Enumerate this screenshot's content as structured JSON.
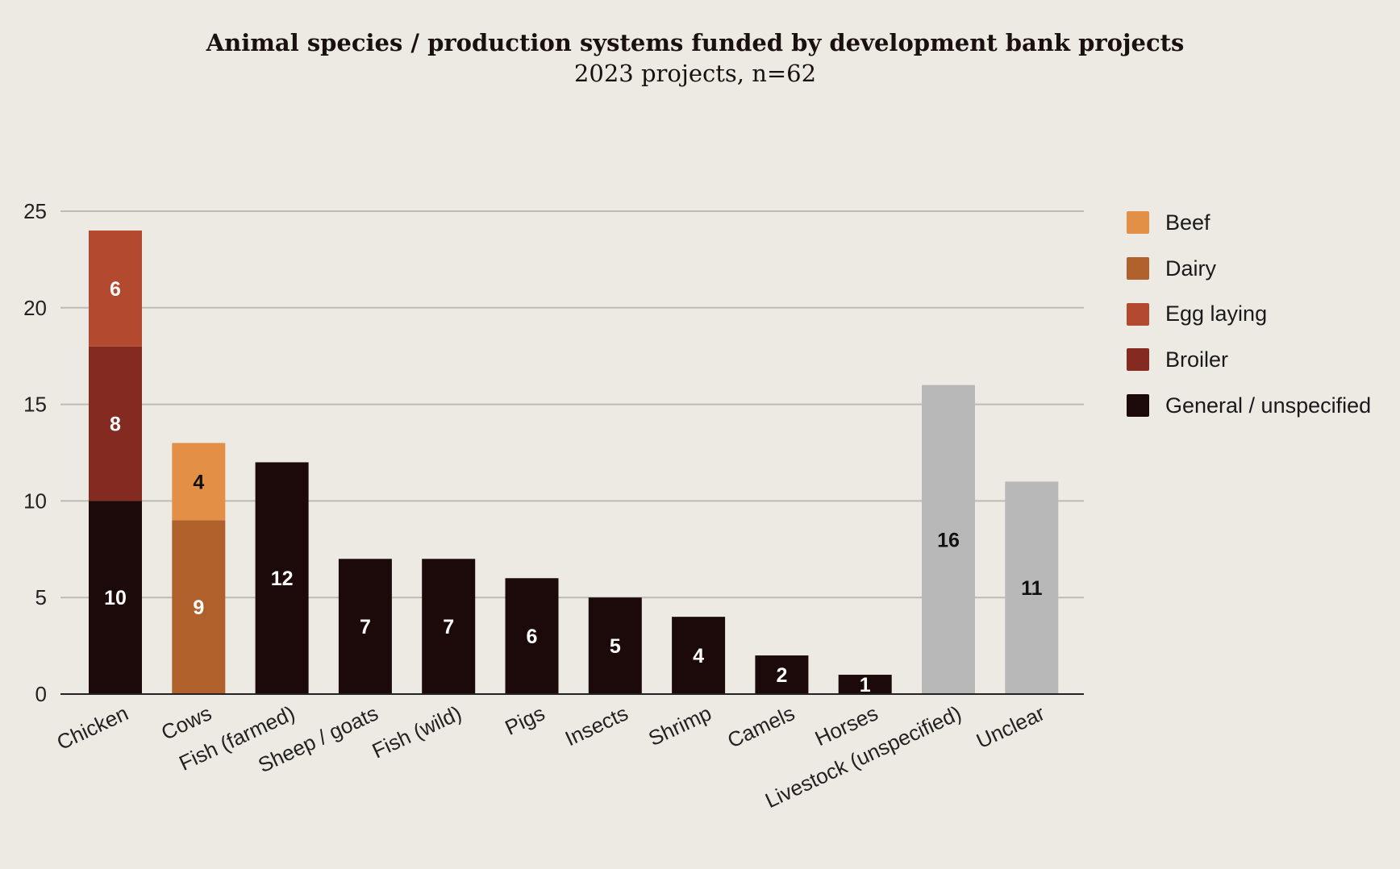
{
  "chart_data": {
    "type": "bar",
    "stacked": true,
    "title": "Animal species / production systems funded by development bank projects",
    "subtitle": "2023 projects, n=62",
    "xlabel": "",
    "ylabel": "",
    "ylim": [
      0,
      25
    ],
    "yticks": [
      0,
      5,
      10,
      15,
      20,
      25
    ],
    "grid": true,
    "legend_position": "right",
    "categories": [
      "Chicken",
      "Cows",
      "Fish (farmed)",
      "Sheep / goats",
      "Fish (wild)",
      "Pigs",
      "Insects",
      "Shrimp",
      "Camels",
      "Horses",
      "Livestock (unspecified)",
      "Unclear"
    ],
    "series": [
      {
        "name": "General / unspecified",
        "color": "#1C0A0A",
        "values": [
          10,
          0,
          12,
          7,
          7,
          6,
          5,
          4,
          2,
          1,
          0,
          0
        ]
      },
      {
        "name": "Dairy",
        "color": "#B0602A",
        "values": [
          0,
          9,
          0,
          0,
          0,
          0,
          0,
          0,
          0,
          0,
          0,
          0
        ]
      },
      {
        "name": "Beef",
        "color": "#E38F45",
        "values": [
          0,
          4,
          0,
          0,
          0,
          0,
          0,
          0,
          0,
          0,
          0,
          0
        ]
      },
      {
        "name": "Broiler",
        "color": "#852A20",
        "values": [
          8,
          0,
          0,
          0,
          0,
          0,
          0,
          0,
          0,
          0,
          0,
          0
        ]
      },
      {
        "name": "Egg laying",
        "color": "#B34A30",
        "values": [
          6,
          0,
          0,
          0,
          0,
          0,
          0,
          0,
          0,
          0,
          0,
          0
        ]
      },
      {
        "name": "",
        "color": "#B8B8B8",
        "values": [
          0,
          0,
          0,
          0,
          0,
          0,
          0,
          0,
          0,
          0,
          16,
          11
        ]
      }
    ],
    "legend_order": [
      "Beef",
      "Dairy",
      "Egg laying",
      "Broiler",
      "General / unspecified"
    ]
  },
  "colors": {
    "background": "#EDEAE4",
    "grid": "#BDBBB6",
    "axis": "#222222"
  }
}
